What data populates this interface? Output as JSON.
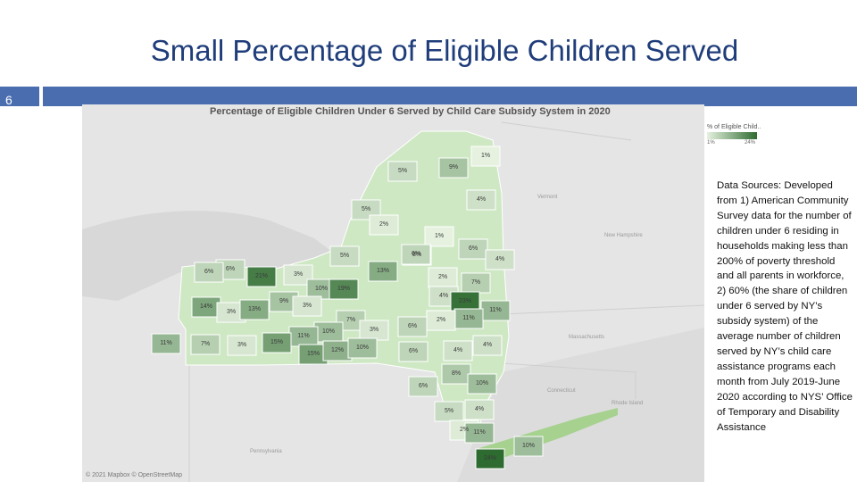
{
  "slide": {
    "title": "Small Percentage of Eligible Children Served",
    "number": "6"
  },
  "map": {
    "title": "Percentage of Eligible Children Under 6 Served by Child Care Subsidy System in 2020",
    "credit": "© 2021 Mapbox © OpenStreetMap",
    "legend_title": "% of Eligible Child..",
    "legend_min": "1%",
    "legend_max": "24%",
    "color_low": "#e6f2df",
    "color_high": "#2e6b30",
    "place_labels": [
      "Vermont",
      "New Hampshire",
      "Massachusetts",
      "Connecticut",
      "Rhode Island",
      "Pennsylvania"
    ],
    "regions": [
      {
        "label": "5%",
        "value": 5
      },
      {
        "label": "9%",
        "value": 9
      },
      {
        "label": "1%",
        "value": 1
      },
      {
        "label": "4%",
        "value": 4
      },
      {
        "label": "5%",
        "value": 5
      },
      {
        "label": "2%",
        "value": 2
      },
      {
        "label": "1%",
        "value": 1
      },
      {
        "label": "8%",
        "value": 8
      },
      {
        "label": "6%",
        "value": 6
      },
      {
        "label": "6%",
        "value": 6
      },
      {
        "label": "5%",
        "value": 5
      },
      {
        "label": "4%",
        "value": 4
      },
      {
        "label": "6%",
        "value": 6
      },
      {
        "label": "21%",
        "value": 21
      },
      {
        "label": "3%",
        "value": 3
      },
      {
        "label": "13%",
        "value": 13
      },
      {
        "label": "2%",
        "value": 2
      },
      {
        "label": "7%",
        "value": 7
      },
      {
        "label": "6%",
        "value": 6
      },
      {
        "label": "10%",
        "value": 10
      },
      {
        "label": "19%",
        "value": 19
      },
      {
        "label": "4%",
        "value": 4
      },
      {
        "label": "23%",
        "value": 23
      },
      {
        "label": "14%",
        "value": 14
      },
      {
        "label": "3%",
        "value": 3
      },
      {
        "label": "13%",
        "value": 13
      },
      {
        "label": "9%",
        "value": 9
      },
      {
        "label": "3%",
        "value": 3
      },
      {
        "label": "7%",
        "value": 7
      },
      {
        "label": "3%",
        "value": 3
      },
      {
        "label": "11%",
        "value": 11
      },
      {
        "label": "10%",
        "value": 10
      },
      {
        "label": "11%",
        "value": 11
      },
      {
        "label": "6%",
        "value": 6
      },
      {
        "label": "2%",
        "value": 2
      },
      {
        "label": "11%",
        "value": 11
      },
      {
        "label": "11%",
        "value": 11
      },
      {
        "label": "7%",
        "value": 7
      },
      {
        "label": "3%",
        "value": 3
      },
      {
        "label": "15%",
        "value": 15
      },
      {
        "label": "15%",
        "value": 15
      },
      {
        "label": "12%",
        "value": 12
      },
      {
        "label": "10%",
        "value": 10
      },
      {
        "label": "6%",
        "value": 6
      },
      {
        "label": "4%",
        "value": 4
      },
      {
        "label": "4%",
        "value": 4
      },
      {
        "label": "6%",
        "value": 6
      },
      {
        "label": "8%",
        "value": 8
      },
      {
        "label": "10%",
        "value": 10
      },
      {
        "label": "5%",
        "value": 5
      },
      {
        "label": "4%",
        "value": 4
      },
      {
        "label": "2%",
        "value": 2
      },
      {
        "label": "11%",
        "value": 11
      },
      {
        "label": "10%",
        "value": 10
      },
      {
        "label": "24%",
        "value": 24
      }
    ]
  },
  "sources": {
    "text": "Data Sources: Developed from 1) American Community Survey data for the number of children under 6 residing in households making less than 200% of poverty threshold and all parents in workforce, 2) 60% (the share of children under 6 served by NY’s subsidy system) of the average number of children served by NY’s child care assistance programs each month from July 2019-June 2020 according to NYS’ Office of Temporary and Disability Assistance"
  }
}
